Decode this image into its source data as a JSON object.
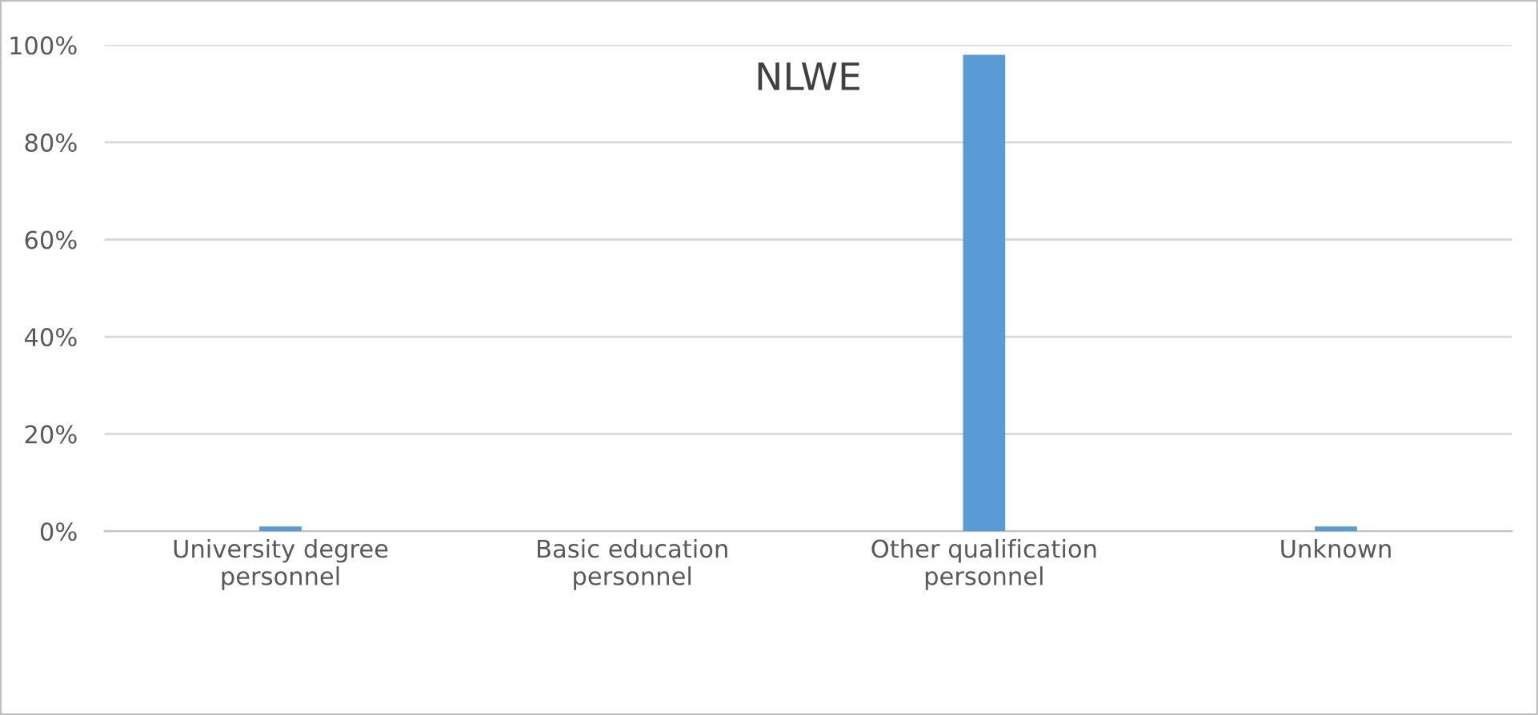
{
  "chart_data": {
    "type": "bar",
    "title": "NLWE",
    "categories": [
      "University degree\npersonnel",
      "Basic education\npersonnel",
      "Other qualification\npersonnel",
      "Unknown"
    ],
    "values": [
      1,
      0,
      98,
      1
    ],
    "color": "#5b9bd5",
    "ylim": [
      0,
      100
    ],
    "yticks": [
      {
        "value": 0,
        "label": "0%"
      },
      {
        "value": 20,
        "label": "20%"
      },
      {
        "value": 40,
        "label": "40%"
      },
      {
        "value": 60,
        "label": "60%"
      },
      {
        "value": 80,
        "label": "80%"
      },
      {
        "value": 100,
        "label": "100%"
      }
    ],
    "grid": "y",
    "legend": false
  }
}
